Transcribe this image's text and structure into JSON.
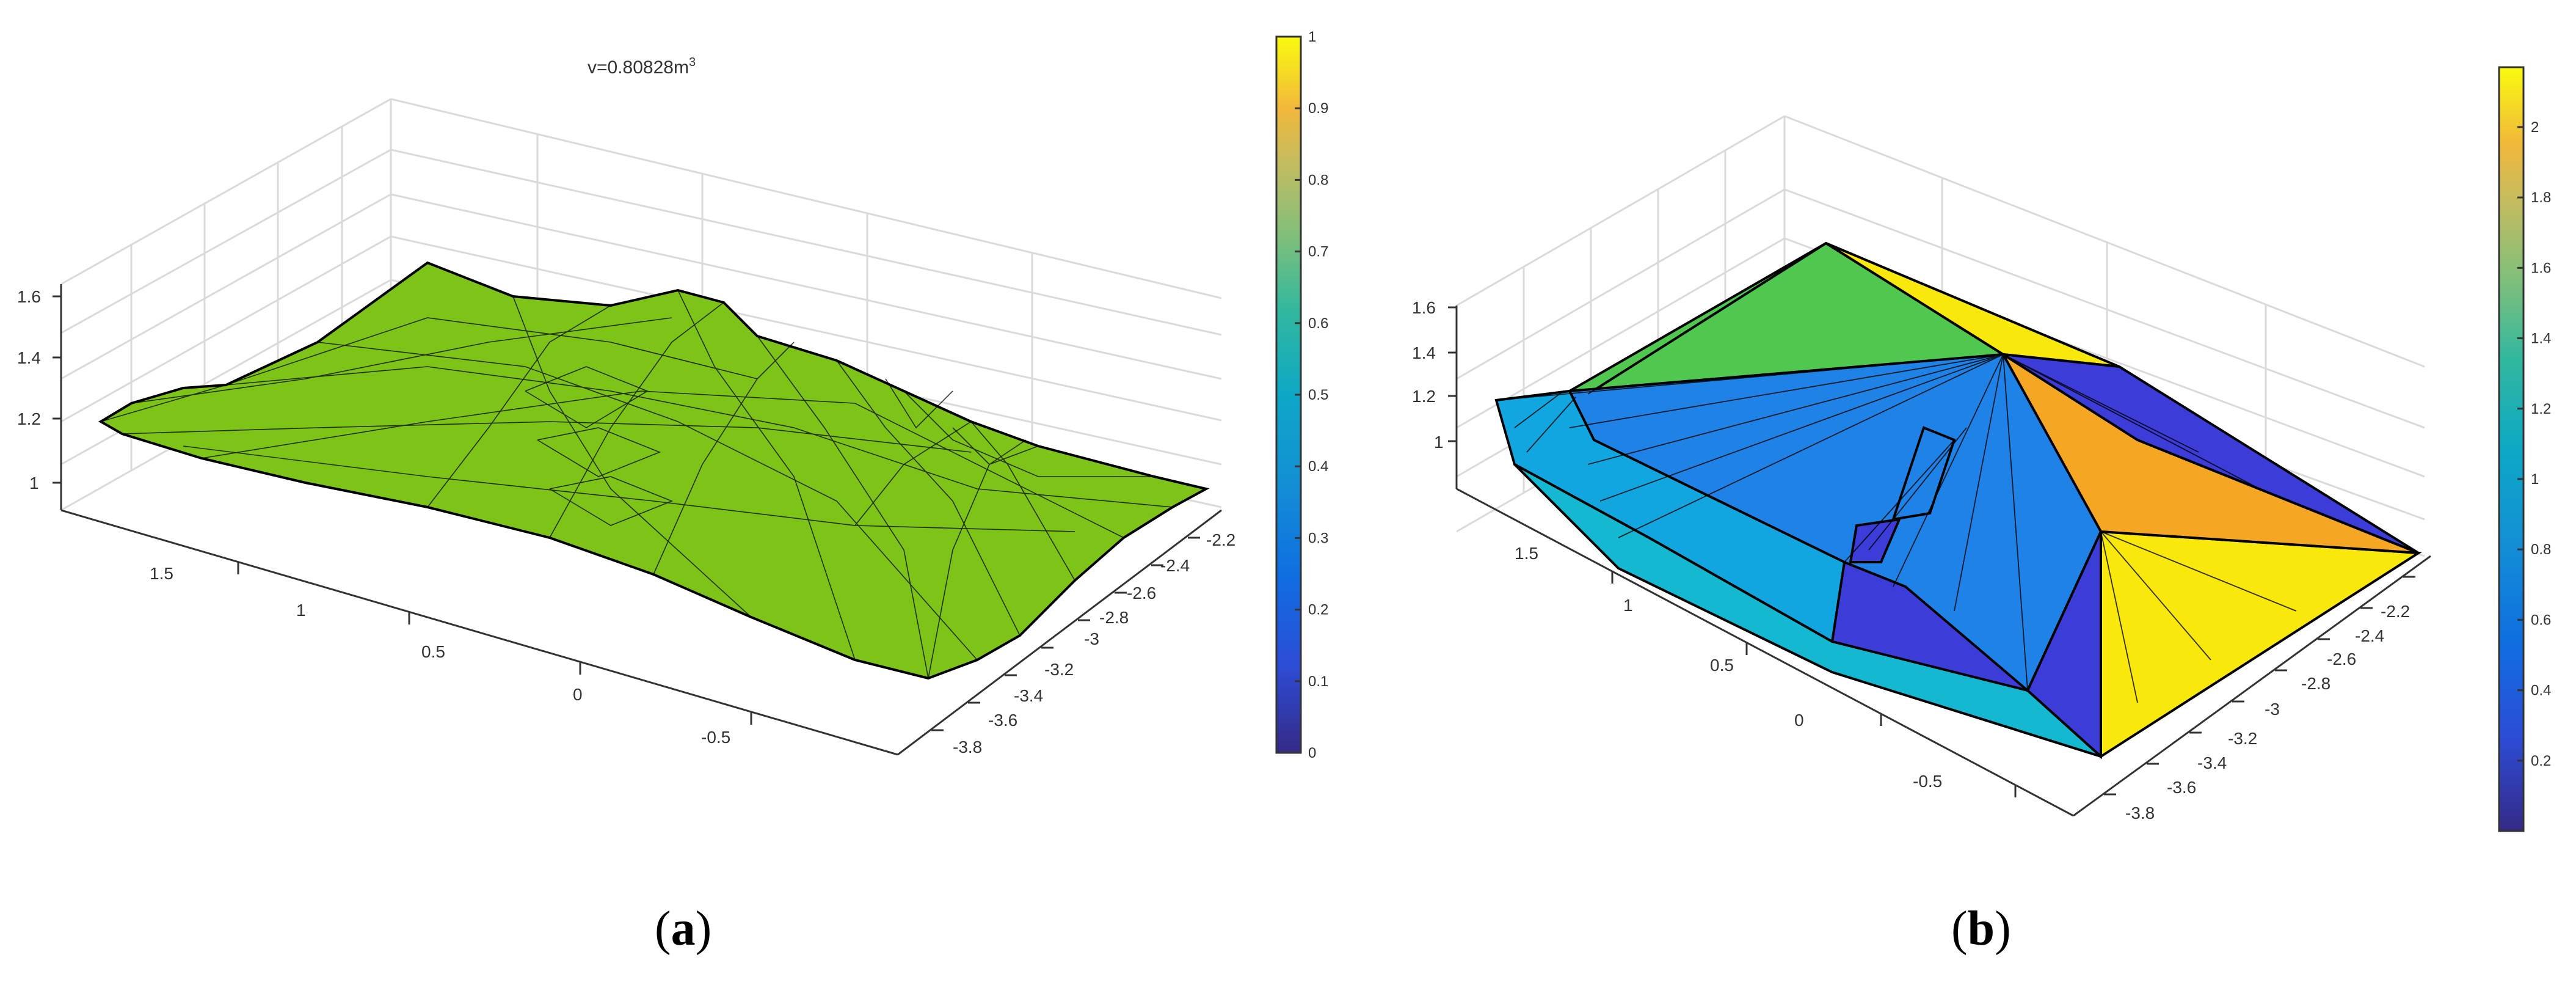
{
  "captions": {
    "a_open": "(",
    "a_letter": "a",
    "a_close": ")",
    "b_open": "(",
    "b_letter": "b",
    "b_close": ")"
  },
  "colors": {
    "green_surface": "#7DC318",
    "parula_green": "#50C850",
    "parula_yellow": "#F8E80C",
    "parula_orange": "#F5A623",
    "parula_blue": "#1E82E6",
    "parula_lightblue": "#12A6E0",
    "parula_indigo": "#3C3CD8",
    "parula_cyan": "#14B8D0",
    "mesh_edge": "#000000",
    "grid": "#DADADA"
  },
  "chart_data": [
    {
      "type": "surface",
      "panel": "a",
      "title": "v=0.80828m",
      "title_superscript": "3",
      "z_ticks": [
        "1",
        "1.2",
        "1.4",
        "1.6"
      ],
      "x_ticks": [
        "-0.5",
        "0",
        "0.5",
        "1",
        "1.5"
      ],
      "y_ticks": [
        "-3.8",
        "-3.6",
        "-3.4",
        "-3.2",
        "-3",
        "-2.8",
        "-2.6",
        "-2.4",
        "-2.2"
      ],
      "zlim": [
        0.9,
        1.7
      ],
      "colorbar": {
        "ticks": [
          "0",
          "0.1",
          "0.2",
          "0.3",
          "0.4",
          "0.5",
          "0.6",
          "0.7",
          "0.8",
          "0.9",
          "1"
        ],
        "range": [
          0,
          1
        ],
        "colormap": "parula"
      },
      "surface_color": "#7DC318",
      "grid": true
    },
    {
      "type": "surface",
      "panel": "b",
      "title": "",
      "z_ticks": [
        "1",
        "1.2",
        "1.4",
        "1.6"
      ],
      "x_ticks": [
        "-0.5",
        "0",
        "0.5",
        "1",
        "1.5"
      ],
      "y_ticks": [
        "-3.8",
        "-3.6",
        "-3.4",
        "-3.2",
        "-3",
        "-2.8",
        "-2.6",
        "-2.4",
        "-2.2"
      ],
      "zlim": [
        0.9,
        1.7
      ],
      "colorbar": {
        "ticks": [
          "0.2",
          "0.4",
          "0.6",
          "0.8",
          "1",
          "1.2",
          "1.4",
          "1.6",
          "1.8",
          "2"
        ],
        "range": [
          0,
          2.17
        ],
        "colormap": "parula"
      },
      "grid": true
    }
  ]
}
